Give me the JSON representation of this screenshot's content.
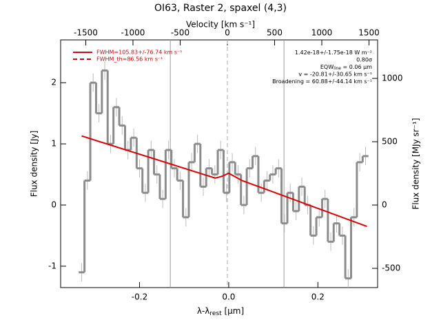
{
  "chart_data": {
    "type": "spectrum",
    "title": "OI63, Raster 2, spaxel (4,3)",
    "x_label": [
      "λ-λ",
      "rest",
      " [μm]"
    ],
    "y_label": "Flux density [Jy]",
    "x2_label": "Velocity [km s⁻¹]",
    "y2_label": "Flux density [MJy sr⁻¹]",
    "xlim": [
      -0.377,
      0.334
    ],
    "ylim": [
      -1.35,
      2.7
    ],
    "x2lim": [
      -1766,
      1591
    ],
    "y2lim": [
      -652,
      1304
    ],
    "xticks": [
      -0.2,
      {
        "value": 0,
        "label": "0.0"
      },
      0.2
    ],
    "yticks": [
      -1,
      0,
      1,
      2
    ],
    "x2ticks": [
      -1500,
      -1000,
      -500,
      0,
      500,
      1000,
      1500
    ],
    "y2ticks": [
      -500,
      0,
      500,
      1000
    ],
    "series": [
      {
        "name": "spectrum",
        "color": "#8c8c8c",
        "error": 0.15,
        "x": [
          -0.33,
          -0.317,
          -0.304,
          -0.291,
          -0.278,
          -0.265,
          -0.252,
          -0.239,
          -0.226,
          -0.213,
          -0.2,
          -0.187,
          -0.174,
          -0.161,
          -0.148,
          -0.135,
          -0.122,
          -0.109,
          -0.096,
          -0.083,
          -0.07,
          -0.057,
          -0.044,
          -0.031,
          -0.018,
          -0.005,
          0.008,
          0.021,
          0.034,
          0.047,
          0.06,
          0.073,
          0.086,
          0.099,
          0.112,
          0.125,
          0.138,
          0.151,
          0.164,
          0.177,
          0.19,
          0.203,
          0.216,
          0.229,
          0.242,
          0.255,
          0.268,
          0.281,
          0.294,
          0.307
        ],
        "values": [
          -1.1,
          0.4,
          2.0,
          1.5,
          2.2,
          1.0,
          1.6,
          1.3,
          0.9,
          1.1,
          0.6,
          0.2,
          0.9,
          0.5,
          0.1,
          0.9,
          0.6,
          0.4,
          -0.2,
          0.7,
          1.0,
          0.3,
          0.6,
          0.5,
          0.9,
          0.2,
          0.7,
          0.5,
          0.0,
          0.6,
          0.8,
          0.2,
          0.4,
          0.5,
          0.6,
          -0.3,
          0.2,
          -0.1,
          0.3,
          0.0,
          -0.5,
          -0.2,
          0.1,
          -0.6,
          -0.3,
          -0.5,
          -1.2,
          -0.2,
          0.7,
          0.8
        ]
      },
      {
        "name": "FWHM=105.83+/-76.74 km s⁻¹",
        "color": "#e00000",
        "dash": false,
        "x": [
          -0.33,
          -0.03,
          -0.015,
          0.0,
          0.015,
          0.03,
          0.31
        ],
        "values": [
          1.13,
          0.44,
          0.47,
          0.52,
          0.46,
          0.4,
          -0.35
        ]
      },
      {
        "name": "FWHM_th=86.56 km s⁻¹",
        "color": "#e00000",
        "dash": true,
        "x": [],
        "values": []
      }
    ],
    "vlines": [
      -0.131,
      0.124
    ],
    "center_line": -0.003,
    "annotations": [
      [
        "1.42e-18+/-1.75e-18 W m⁻²"
      ],
      [
        "0.80σ"
      ],
      [
        "EQW",
        "line",
        " = 0.06 μm"
      ],
      [
        "v = -20.81+/-30.65 km s⁻¹"
      ],
      [
        "Broadening = 60.88+/-44.14 km s⁻¹"
      ]
    ]
  }
}
